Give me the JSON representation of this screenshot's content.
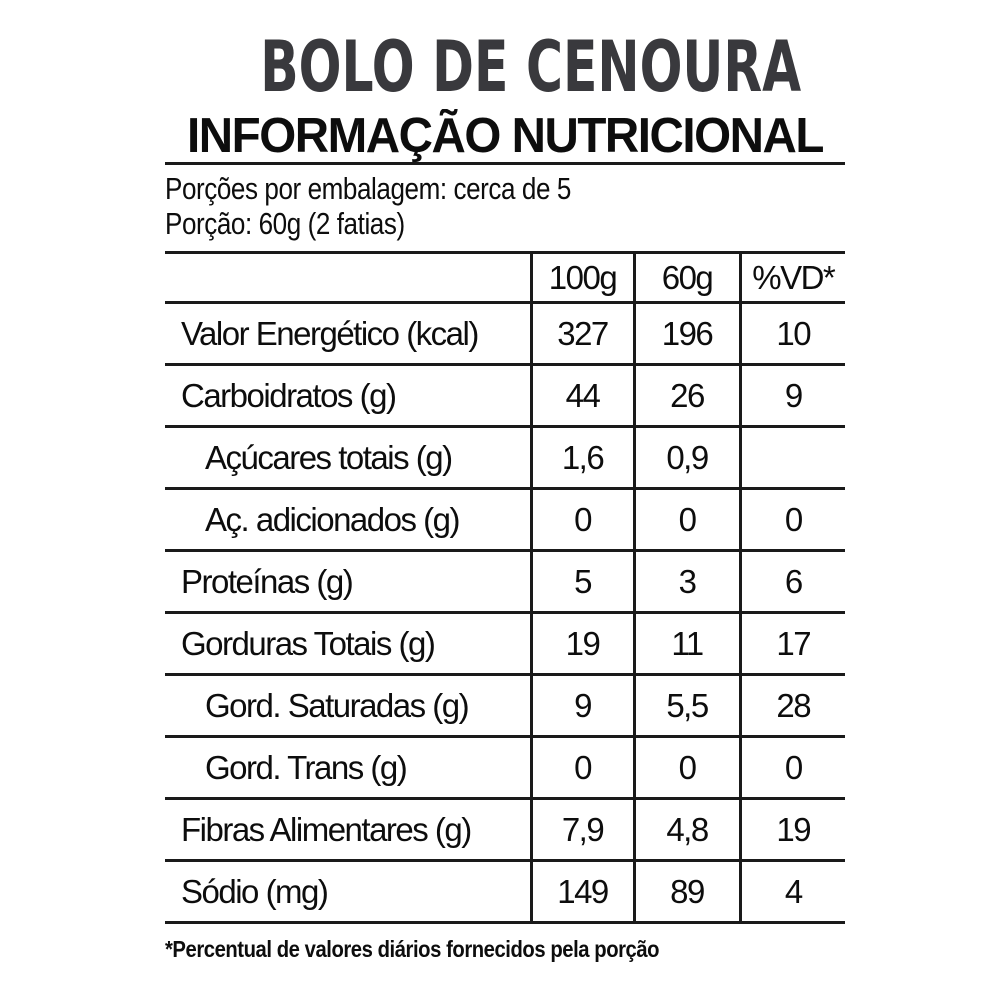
{
  "header": {
    "title": "BOLO DE CENOURA",
    "subtitle": "INFORMAÇÃO NUTRICIONAL"
  },
  "serving_info": {
    "servings_per_package": "Porções por embalagem: cerca de 5",
    "serving_size": "Porção: 60g (2 fatias)"
  },
  "table": {
    "columns": [
      "100g",
      "60g",
      "%VD*"
    ],
    "rows": [
      {
        "label": "Valor Energético (kcal)",
        "indent": false,
        "values": [
          "327",
          "196",
          "10"
        ]
      },
      {
        "label": "Carboidratos (g)",
        "indent": false,
        "values": [
          "44",
          "26",
          "9"
        ]
      },
      {
        "label": "Açúcares totais (g)",
        "indent": true,
        "values": [
          "1,6",
          "0,9",
          ""
        ]
      },
      {
        "label": "Aç. adicionados (g)",
        "indent": true,
        "values": [
          "0",
          "0",
          "0"
        ]
      },
      {
        "label": "Proteínas (g)",
        "indent": false,
        "values": [
          "5",
          "3",
          "6"
        ]
      },
      {
        "label": "Gorduras Totais (g)",
        "indent": false,
        "values": [
          "19",
          "11",
          "17"
        ]
      },
      {
        "label": "Gord. Saturadas (g)",
        "indent": true,
        "values": [
          "9",
          "5,5",
          "28"
        ]
      },
      {
        "label": "Gord. Trans (g)",
        "indent": true,
        "values": [
          "0",
          "0",
          "0"
        ]
      },
      {
        "label": "Fibras Alimentares (g)",
        "indent": false,
        "values": [
          "7,9",
          "4,8",
          "19"
        ]
      },
      {
        "label": "Sódio (mg)",
        "indent": false,
        "values": [
          "149",
          "89",
          "4"
        ]
      }
    ]
  },
  "footnote": "*Percentual de valores diários fornecidos pela porção",
  "colors": {
    "title": "#39393d",
    "text": "#0d0d0d",
    "line": "#1a1a1a",
    "background": "#ffffff"
  }
}
